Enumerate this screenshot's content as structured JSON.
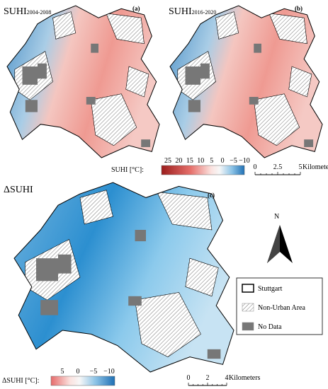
{
  "panels": [
    {
      "title": "SUHI",
      "subscript": "2004-2008",
      "label": "(a)"
    },
    {
      "title": "SUHI",
      "subscript": "2016-2020",
      "label": "(b)"
    },
    {
      "title": "ΔSUHI",
      "label": "(c)"
    }
  ],
  "colorbar_top": {
    "label": "SUHI [°C]:",
    "ticks": [
      "25",
      "20",
      "15",
      "10",
      "5",
      "0",
      "−5",
      "−10"
    ]
  },
  "scale_top": {
    "ticks": [
      "0",
      "2.5",
      "5"
    ],
    "unit": "Kilometers"
  },
  "colorbar_bottom": {
    "label": "ΔSUHI [°C]:",
    "ticks": [
      "5",
      "0",
      "−5",
      "−10"
    ]
  },
  "scale_bottom": {
    "ticks": [
      "0",
      "2",
      "4"
    ],
    "unit": "Kilometers"
  },
  "north": "N",
  "legend": [
    "Stuttgart",
    "Non-Urban Area",
    "No Data"
  ]
}
